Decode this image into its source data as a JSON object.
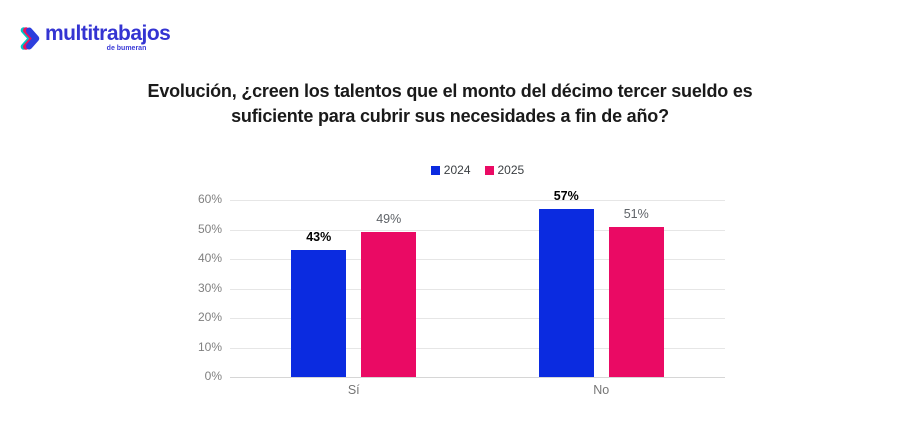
{
  "logo": {
    "brand": "multitrabajos",
    "subtitle": "de bumeran",
    "brand_color": "#3434d2",
    "chevron_colors": {
      "teal": "#00c9c4",
      "magenta": "#e61460",
      "blue": "#2d3fdd"
    }
  },
  "title": {
    "line1": "Evolución, ¿creen los talentos que el monto del décimo tercer sueldo es",
    "line2": "suficiente para cubrir sus necesidades a fin de año?"
  },
  "chart_data": {
    "type": "bar",
    "categories": [
      "Sí",
      "No"
    ],
    "series": [
      {
        "name": "2024",
        "color": "#0b2be0",
        "values": [
          43,
          57
        ],
        "emphasis": true,
        "label_color": "#000000"
      },
      {
        "name": "2025",
        "color": "#ea0a64",
        "values": [
          49,
          51
        ],
        "emphasis": false,
        "label_color": "#5f6368"
      }
    ],
    "value_suffix": "%",
    "xlabel": "",
    "ylabel": "",
    "ylim": [
      0,
      60
    ],
    "ytick_step": 10,
    "ytick_labels": [
      "0%",
      "10%",
      "20%",
      "30%",
      "40%",
      "50%",
      "60%"
    ],
    "grid": true,
    "legend_position": "top-center",
    "gridline_color": "#e6e6e6",
    "axis_label_color": "#808080"
  }
}
